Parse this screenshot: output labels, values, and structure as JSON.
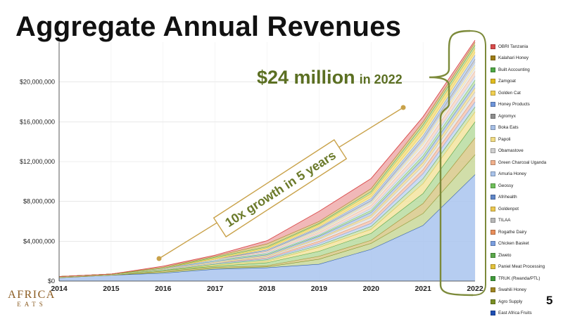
{
  "slide": {
    "title": "Aggregate Annual Revenues",
    "page_number": "5",
    "logo": {
      "line1": "AFRICA",
      "line2": "EATS"
    }
  },
  "colors": {
    "annotation_green": "#5b6f22",
    "annotation_brace": "#7c8a3a",
    "arrow": "#c9a24a",
    "box_border": "#c9a24a",
    "box_text": "#6b7a2a"
  },
  "chart_data": {
    "type": "area",
    "stacked": true,
    "title": "",
    "xlabel": "",
    "ylabel": "",
    "x": [
      "2014",
      "2015",
      "2016",
      "2017",
      "2018",
      "2019",
      "2020",
      "2021",
      "2022"
    ],
    "ylim": [
      0,
      24000000
    ],
    "yticks": [
      0,
      4000000,
      8000000,
      12000000,
      16000000,
      20000000
    ],
    "ytick_labels": [
      "$0",
      "$4,000,000",
      "$8,000,000",
      "$12,000,000",
      "$16,000,000",
      "$20,000,000"
    ],
    "grid": true,
    "legend_position": "right",
    "series": [
      {
        "name": "East Africa Fruits",
        "color": "#a9c4ee",
        "line_color": "#1f4fb4",
        "values": [
          350000,
          600000,
          800000,
          1200000,
          1350000,
          1700000,
          3200000,
          5600000,
          10700000
        ]
      },
      {
        "name": "Agro Supply",
        "color": "#c9d89a",
        "line_color": "#7a8f24",
        "values": [
          0,
          0,
          100000,
          100000,
          100000,
          500000,
          600000,
          1200000,
          2000000
        ]
      },
      {
        "name": "Swahili Honey",
        "color": "#d8c98a",
        "line_color": "#a08622",
        "values": [
          0,
          0,
          100000,
          100000,
          100000,
          300000,
          300000,
          1000000,
          1700000
        ]
      },
      {
        "name": "TRUK (Rwanda/PTL)",
        "color": "#b8dca0",
        "line_color": "#3f9a3a",
        "values": [
          100000,
          100000,
          100000,
          100000,
          300000,
          500000,
          700000,
          1000000,
          1600000
        ]
      },
      {
        "name": "Paniel Meat Processing",
        "color": "#f3e4a0",
        "line_color": "#e3c23b",
        "values": [
          0,
          0,
          0,
          100000,
          150000,
          400000,
          400000,
          1000000,
          1000000
        ]
      },
      {
        "name": "Ziweto",
        "color": "#cfe3b2",
        "line_color": "#5aa84a",
        "values": [
          0,
          0,
          0,
          100000,
          150000,
          200000,
          300000,
          500000,
          500000
        ]
      },
      {
        "name": "Chicken Basket",
        "color": "#c3d6f1",
        "line_color": "#7b9fe0",
        "values": [
          0,
          0,
          100000,
          100000,
          100000,
          200000,
          300000,
          500000,
          500000
        ]
      },
      {
        "name": "Rogathe Dairy",
        "color": "#f4c7b4",
        "line_color": "#e98e5a",
        "values": [
          0,
          0,
          0,
          0,
          100000,
          200000,
          300000,
          400000,
          500000
        ]
      },
      {
        "name": "TILAA",
        "color": "#e4e4e4",
        "line_color": "#b8b8b8",
        "values": [
          0,
          0,
          0,
          0,
          100000,
          200000,
          300000,
          400000,
          500000
        ]
      },
      {
        "name": "Goldenpot",
        "color": "#f4e2a4",
        "line_color": "#ecc850",
        "values": [
          0,
          0,
          0,
          100000,
          100000,
          100000,
          200000,
          300000,
          400000
        ]
      },
      {
        "name": "Afrihealth",
        "color": "#b9cbe9",
        "line_color": "#5f86c8",
        "values": [
          0,
          0,
          100000,
          100000,
          100000,
          200000,
          300000,
          400000,
          400000
        ]
      },
      {
        "name": "Geossy",
        "color": "#c3e2b0",
        "line_color": "#6fbf5a",
        "values": [
          0,
          0,
          0,
          100000,
          100000,
          100000,
          200000,
          300000,
          400000
        ]
      },
      {
        "name": "Amuria Honey",
        "color": "#d8e4f5",
        "line_color": "#a9c3ea",
        "values": [
          0,
          0,
          0,
          0,
          100000,
          100000,
          200000,
          300000,
          400000
        ]
      },
      {
        "name": "Green Charcoal Uganda",
        "color": "#f7d8c8",
        "line_color": "#f0b08c",
        "values": [
          0,
          0,
          0,
          100000,
          100000,
          200000,
          300000,
          500000,
          500000
        ]
      },
      {
        "name": "Obamastove",
        "color": "#ececec",
        "line_color": "#cfcfcf",
        "values": [
          0,
          0,
          0,
          0,
          100000,
          100000,
          200000,
          300000,
          300000
        ]
      },
      {
        "name": "Papoli",
        "color": "#f9efc4",
        "line_color": "#f2dc84",
        "values": [
          0,
          0,
          0,
          0,
          0,
          100000,
          100000,
          200000,
          300000
        ]
      },
      {
        "name": "Boka Eats",
        "color": "#d4e0f3",
        "line_color": "#a6bfe6",
        "values": [
          0,
          0,
          0,
          0,
          0,
          100000,
          100000,
          200000,
          300000
        ]
      },
      {
        "name": "Agromyx",
        "color": "#cfcfcf",
        "line_color": "#8e8e8e",
        "values": [
          0,
          0,
          0,
          0,
          0,
          100000,
          100000,
          200000,
          300000
        ]
      },
      {
        "name": "Honey Products",
        "color": "#bfd2f0",
        "line_color": "#6e95da",
        "values": [
          0,
          0,
          0,
          0,
          100000,
          100000,
          200000,
          300000,
          400000
        ]
      },
      {
        "name": "Golden Cat",
        "color": "#f8e8a8",
        "line_color": "#f0cf52",
        "values": [
          0,
          0,
          0,
          0,
          100000,
          100000,
          200000,
          300000,
          300000
        ]
      },
      {
        "name": "Zamgoat",
        "color": "#f2df86",
        "line_color": "#e0bb1f",
        "values": [
          0,
          0,
          0,
          100000,
          100000,
          200000,
          300000,
          500000,
          400000
        ]
      },
      {
        "name": "Built Accounting",
        "color": "#bfe0ae",
        "line_color": "#4fa844",
        "values": [
          0,
          0,
          0,
          100000,
          100000,
          100000,
          200000,
          300000,
          300000
        ]
      },
      {
        "name": "Kalahari Honey",
        "color": "#dcc98a",
        "line_color": "#9e7d16",
        "values": [
          0,
          0,
          100000,
          100000,
          300000,
          200000,
          300000,
          300000,
          300000
        ]
      },
      {
        "name": "OBRI Tanzania",
        "color": "#eeabab",
        "line_color": "#d94b4b",
        "values": [
          0,
          0,
          100000,
          100000,
          300000,
          1000000,
          1000000,
          500000,
          200000
        ]
      }
    ],
    "annotations": {
      "headline_value": "$24 million",
      "headline_suffix": "in 2022",
      "growth_label": "10x growth in 5 years"
    }
  }
}
